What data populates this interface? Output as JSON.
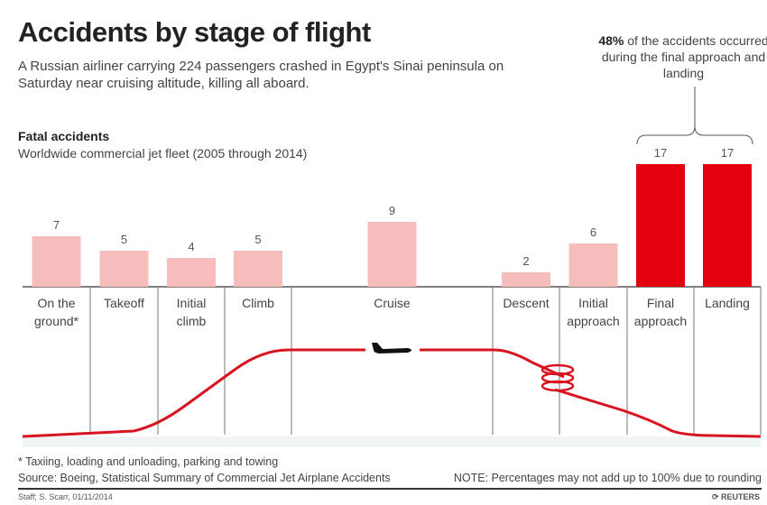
{
  "title": "Accidents by stage of flight",
  "subtitle": "A Russian airliner carrying 224 passengers crashed in Egypt's Sinai peninsula on Saturday near cruising altitude, killing all aboard.",
  "callout": {
    "bold": "48%",
    "text": " of the accidents occurred during the final approach and landing"
  },
  "chart_data": {
    "type": "bar",
    "title": "Fatal accidents",
    "subtitle": "Worldwide commercial jet fleet (2005 through 2014)",
    "categories": [
      "On the ground*",
      "Takeoff",
      "Initial climb",
      "Climb",
      "Cruise",
      "Descent",
      "Initial approach",
      "Final approach",
      "Landing"
    ],
    "values": [
      7,
      5,
      4,
      5,
      9,
      2,
      6,
      17,
      17
    ],
    "highlighted": [
      "Final approach",
      "Landing"
    ],
    "colors": {
      "normal": "#f7bcbc",
      "highlight": "#e3000f",
      "flight_path": "#d7141f"
    },
    "grid": false
  },
  "footnote": "* Taxiing, loading and unloading, parking and towing",
  "source": "Source: Boeing, Statistical Summary of Commercial Jet Airplane Accidents",
  "note": "NOTE: Percentages may not add up to 100% due to rounding",
  "credit": "Staff; S. Scarr, 01/11/2014",
  "logo": "REUTERS"
}
